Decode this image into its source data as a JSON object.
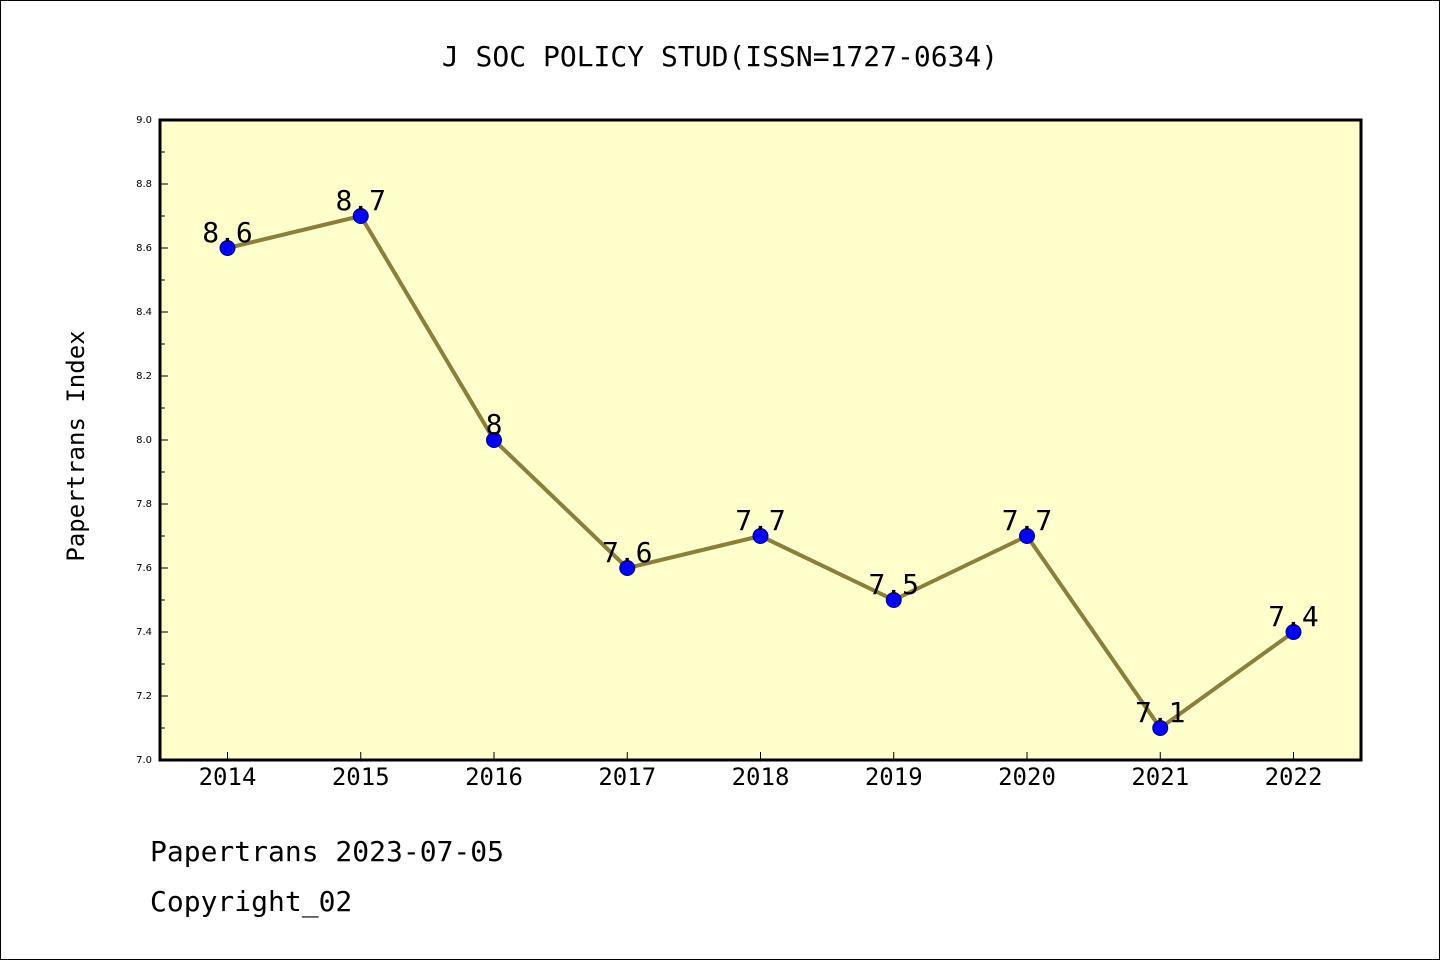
{
  "footer": {
    "line1": "Papertrans 2023-07-05",
    "line2": "Copyright_02"
  },
  "colors": {
    "plot_background": "#ffffcc",
    "line": "#8b7f3a",
    "marker": "#0000ff",
    "marker_edge": "#000080"
  },
  "chart_data": {
    "type": "line",
    "title": "J SOC POLICY STUD(ISSN=1727-0634)",
    "xlabel": "",
    "ylabel": "Papertrans Index",
    "categories": [
      "2014",
      "2015",
      "2016",
      "2017",
      "2018",
      "2019",
      "2020",
      "2021",
      "2022"
    ],
    "series": [
      {
        "values": [
          8.6,
          8.7,
          8.0,
          7.6,
          7.7,
          7.5,
          7.7,
          7.1,
          7.4
        ],
        "data_labels": [
          "8.6",
          "8.7",
          "8",
          "7.6",
          "7.7",
          "7.5",
          "7.7",
          "7.1",
          "7.4"
        ]
      }
    ],
    "ylim": [
      7.0,
      9.0
    ],
    "yticks": [
      "7.0",
      "7.2",
      "7.4",
      "7.6",
      "7.8",
      "8.0",
      "8.2",
      "8.4",
      "8.6",
      "8.8",
      "9.0"
    ],
    "grid": false,
    "legend": "none"
  }
}
